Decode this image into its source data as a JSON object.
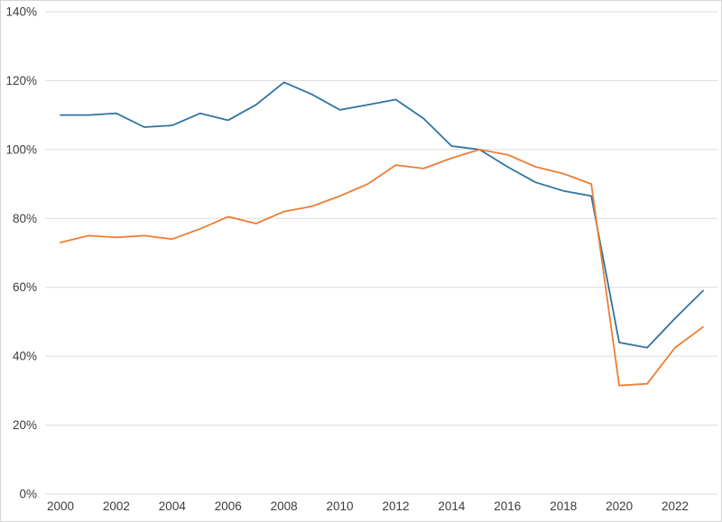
{
  "page": {
    "background": "#ffffff",
    "border_color": "#d4d4d4"
  },
  "chart_data": {
    "type": "line",
    "title": "",
    "xlabel": "",
    "ylabel": "",
    "legend": "none",
    "grid": "horizontal",
    "gridline_color": "#dcdcdc",
    "axis_label_color": "#3c3c3c",
    "xlim": [
      2000,
      2023
    ],
    "ylim": [
      0,
      140
    ],
    "y_ticks": [
      0,
      20,
      40,
      60,
      80,
      100,
      120,
      140
    ],
    "y_tick_labels": [
      "0%",
      "20%",
      "40%",
      "60%",
      "80%",
      "100%",
      "120%",
      "140%"
    ],
    "x_ticks": [
      2000,
      2002,
      2004,
      2006,
      2008,
      2010,
      2012,
      2014,
      2016,
      2018,
      2020,
      2022
    ],
    "x_tick_labels": [
      "2000",
      "2002",
      "2004",
      "2006",
      "2008",
      "2010",
      "2012",
      "2014",
      "2016",
      "2018",
      "2020",
      "2022"
    ],
    "x": [
      2000,
      2001,
      2002,
      2003,
      2004,
      2005,
      2006,
      2007,
      2008,
      2009,
      2010,
      2011,
      2012,
      2013,
      2014,
      2015,
      2016,
      2017,
      2018,
      2019,
      2020,
      2021,
      2022,
      2023
    ],
    "series": [
      {
        "name": "blue-series",
        "color": "#2e73a0",
        "values": [
          110,
          110,
          110.5,
          106.5,
          107,
          110.5,
          108.5,
          113,
          119.5,
          116,
          111.5,
          113,
          114.5,
          109,
          101,
          100,
          95,
          90.5,
          88,
          86.5,
          44,
          42.5,
          51,
          59
        ]
      },
      {
        "name": "orange-series",
        "color": "#ef7d33",
        "values": [
          73,
          75,
          74.5,
          75,
          74,
          77,
          80.5,
          78.5,
          82,
          83.5,
          86.5,
          90,
          95.5,
          94.5,
          97.5,
          100,
          98.5,
          95,
          93,
          90,
          31.5,
          32,
          42.5,
          48.5
        ]
      }
    ]
  }
}
